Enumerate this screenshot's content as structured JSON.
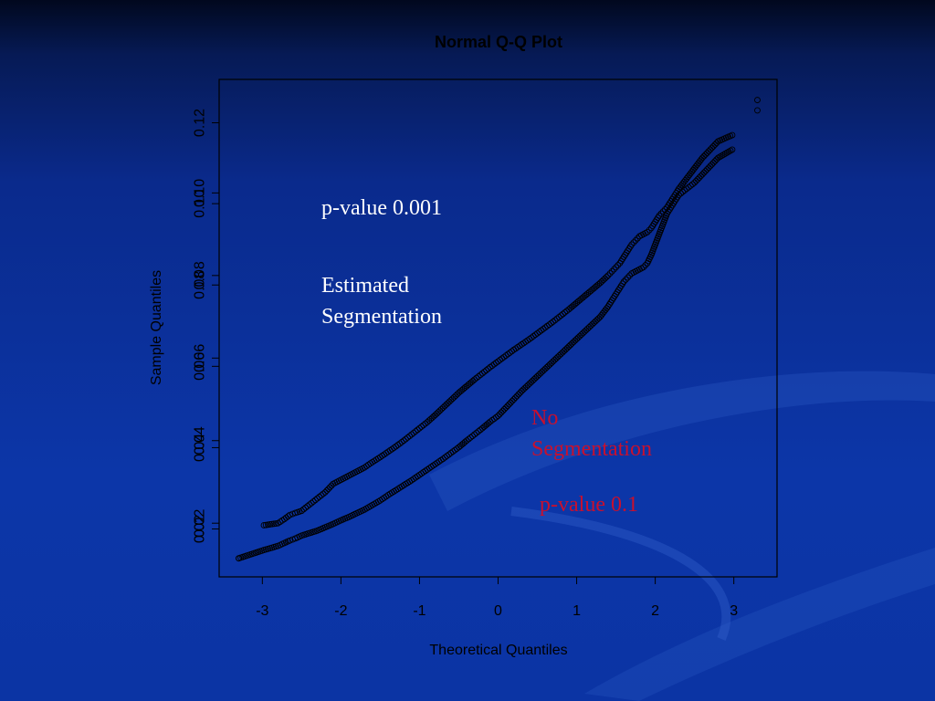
{
  "chart_data": {
    "type": "scatter",
    "title": "Normal Q-Q Plot",
    "xlabel": "Theoretical Quantiles",
    "ylabel": "Sample Quantiles",
    "xlim": [
      -3.55,
      3.55
    ],
    "ylim": [
      0.007,
      0.1275
    ],
    "x_ticks": [
      -3,
      -2,
      -1,
      0,
      1,
      2,
      3
    ],
    "x_tick_labels": [
      "-3",
      "-2",
      "-1",
      "0",
      "1",
      "2",
      "3"
    ],
    "y_ticks_left": [
      0.02,
      0.04,
      0.06,
      0.08,
      0.1
    ],
    "y_tick_labels_left": [
      "0.02",
      "0.04",
      "0.06",
      "0.08",
      "0.10"
    ],
    "y_ticks_right": [
      0.0186,
      0.0383,
      0.058,
      0.0777,
      0.0974,
      0.117
    ],
    "y_tick_labels_right": [
      "0.02",
      "0.04",
      "0.06",
      "0.08",
      "0.10",
      "0.12"
    ],
    "grid": false,
    "marker": "open-circle",
    "series": [
      {
        "name": "Estimated Segmentation",
        "x": [
          -3.3,
          -2.98,
          -2.8,
          -2.72,
          -2.65,
          -2.58,
          -2.5,
          -2.4,
          -2.3,
          -2.2,
          -2.1,
          -2.0,
          -1.9,
          -1.8,
          -1.7,
          -1.6,
          -1.5,
          -1.4,
          -1.3,
          -1.2,
          -1.1,
          -1.0,
          -0.9,
          -0.8,
          -0.7,
          -0.6,
          -0.5,
          -0.4,
          -0.3,
          -0.2,
          -0.1,
          0.0,
          0.1,
          0.2,
          0.3,
          0.4,
          0.5,
          0.6,
          0.7,
          0.8,
          0.9,
          1.0,
          1.1,
          1.2,
          1.3,
          1.4,
          1.45,
          1.5,
          1.55,
          1.6,
          1.65,
          1.7,
          1.75,
          1.8,
          1.85,
          1.9,
          1.95,
          2.0,
          2.05,
          2.1,
          2.15,
          2.2,
          2.25,
          2.3,
          2.4,
          2.5,
          2.6,
          2.7,
          2.8,
          2.98,
          3.3
        ],
        "y": [
          0.0115,
          0.0135,
          0.0145,
          0.0152,
          0.0158,
          0.0163,
          0.017,
          0.0176,
          0.0182,
          0.019,
          0.0198,
          0.0207,
          0.0215,
          0.0224,
          0.0233,
          0.0244,
          0.0255,
          0.0268,
          0.028,
          0.0292,
          0.0304,
          0.0317,
          0.033,
          0.0343,
          0.0356,
          0.037,
          0.0384,
          0.04,
          0.0415,
          0.043,
          0.0446,
          0.046,
          0.048,
          0.05,
          0.052,
          0.0538,
          0.0556,
          0.0574,
          0.0592,
          0.061,
          0.0628,
          0.0646,
          0.0664,
          0.0682,
          0.07,
          0.0725,
          0.074,
          0.0755,
          0.077,
          0.0785,
          0.0795,
          0.0805,
          0.081,
          0.0815,
          0.082,
          0.083,
          0.085,
          0.0875,
          0.09,
          0.0925,
          0.095,
          0.0965,
          0.098,
          0.0995,
          0.101,
          0.1025,
          0.1045,
          0.1065,
          0.1085,
          0.1105,
          0.12
        ]
      },
      {
        "name": "No Segmentation",
        "x": [
          -3.3,
          -2.98,
          -2.8,
          -2.72,
          -2.65,
          -2.58,
          -2.5,
          -2.4,
          -2.3,
          -2.2,
          -2.1,
          -2.0,
          -1.9,
          -1.8,
          -1.7,
          -1.6,
          -1.5,
          -1.4,
          -1.3,
          -1.2,
          -1.1,
          -1.0,
          -0.9,
          -0.8,
          -0.7,
          -0.6,
          -0.5,
          -0.4,
          -0.3,
          -0.2,
          -0.1,
          0.0,
          0.1,
          0.2,
          0.3,
          0.4,
          0.5,
          0.6,
          0.7,
          0.8,
          0.9,
          1.0,
          1.1,
          1.2,
          1.3,
          1.4,
          1.45,
          1.5,
          1.55,
          1.6,
          1.65,
          1.7,
          1.75,
          1.8,
          1.85,
          1.9,
          1.95,
          2.0,
          2.05,
          2.1,
          2.15,
          2.2,
          2.25,
          2.3,
          2.4,
          2.5,
          2.6,
          2.7,
          2.8,
          2.98,
          3.3
        ],
        "y": [
          0.0115,
          0.0195,
          0.02,
          0.021,
          0.022,
          0.0225,
          0.023,
          0.0245,
          0.026,
          0.0275,
          0.0295,
          0.0305,
          0.0315,
          0.0325,
          0.0335,
          0.0348,
          0.036,
          0.0373,
          0.0386,
          0.04,
          0.0415,
          0.043,
          0.0445,
          0.0462,
          0.048,
          0.0498,
          0.0516,
          0.0532,
          0.0548,
          0.0563,
          0.0578,
          0.0592,
          0.0606,
          0.062,
          0.0633,
          0.0646,
          0.066,
          0.0674,
          0.0688,
          0.0703,
          0.0718,
          0.0734,
          0.075,
          0.0766,
          0.0782,
          0.08,
          0.081,
          0.082,
          0.083,
          0.0845,
          0.086,
          0.0875,
          0.0885,
          0.0895,
          0.09,
          0.0905,
          0.0915,
          0.093,
          0.0945,
          0.0955,
          0.0965,
          0.098,
          0.0995,
          0.101,
          0.1035,
          0.106,
          0.1085,
          0.1105,
          0.1125,
          0.114,
          0.1225
        ]
      }
    ]
  },
  "annotations": {
    "estimated_pvalue": "p-value 0.001",
    "estimated_label": "Estimated\nSegmentation",
    "no_seg_label": "No\nSegmentation",
    "no_seg_pvalue": "p-value 0.1"
  },
  "colors": {
    "estimated_text": "#ffffff",
    "no_seg_text": "#c8102e",
    "axis": "#000000",
    "marker": "#000000"
  }
}
